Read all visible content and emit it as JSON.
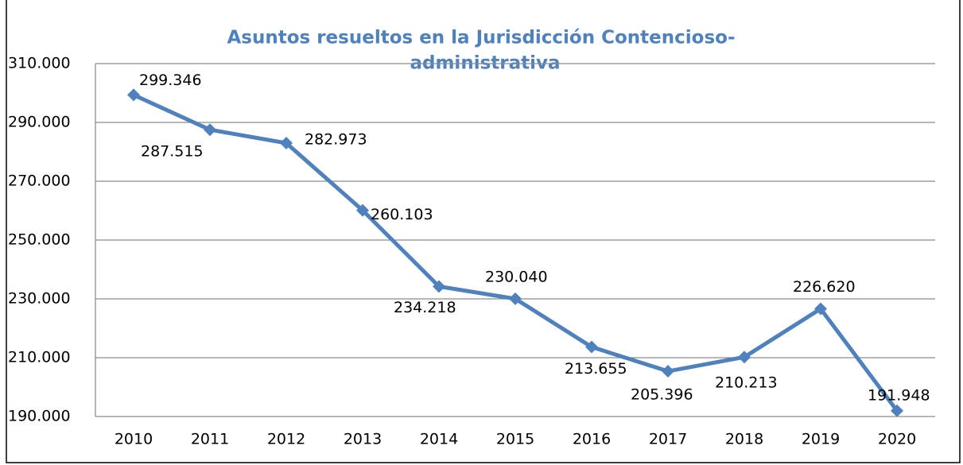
{
  "chart_data": {
    "type": "line",
    "title": [
      "Asuntos resueltos en la Jurisdicción Contencioso-",
      "administrativa"
    ],
    "categories": [
      "2010",
      "2011",
      "2012",
      "2013",
      "2014",
      "2015",
      "2016",
      "2017",
      "2018",
      "2019",
      "2020"
    ],
    "values": [
      299346,
      287515,
      282973,
      260103,
      234218,
      230040,
      213655,
      205396,
      210213,
      226620,
      191948
    ],
    "value_labels": [
      "299.346",
      "287.515",
      "282.973",
      "260.103",
      "234.218",
      "230.040",
      "213.655",
      "205.396",
      "210.213",
      "226.620",
      "191.948"
    ],
    "color": "#4f81bd",
    "ylim": [
      190000,
      310000
    ],
    "yticks": [
      {
        "value": 190000,
        "label": "190.000"
      },
      {
        "value": 210000,
        "label": "210.000"
      },
      {
        "value": 230000,
        "label": "230.000"
      },
      {
        "value": 250000,
        "label": "250.000"
      },
      {
        "value": 270000,
        "label": "270.000"
      },
      {
        "value": 290000,
        "label": "290.000"
      },
      {
        "value": 310000,
        "label": "310.000"
      }
    ],
    "grid": true
  }
}
